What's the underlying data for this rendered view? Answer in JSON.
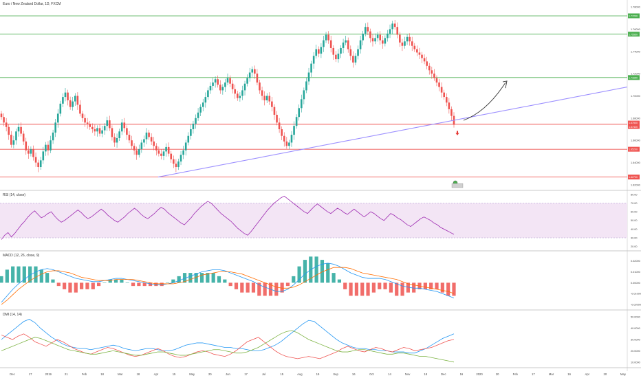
{
  "symbol_title": "Euro / New Zealand Dollar, 1D, FXCM",
  "panels": {
    "rsi_title": "RSI (14, close)",
    "macd_title": "MACD (12, 26, close, 9)",
    "dmi_title": "DMI (14, 14)"
  },
  "colors": {
    "up": "#26a69a",
    "down": "#ef5350",
    "resistance": "#4caf50",
    "support": "#ef5350",
    "trendline": "#9c8fff",
    "rsi": "#9c27b0",
    "rsi_band": "#f3e5f5",
    "macd_line": "#2196f3",
    "signal_line": "#ff6d00",
    "di_plus": "#2196f3",
    "di_minus": "#ef5350",
    "adx": "#7cb342"
  },
  "chart_data": [
    {
      "type": "candlestick",
      "title": "Euro / New Zealand Dollar, 1D, FXCM",
      "x_ticks": [
        "Dec",
        "17",
        "2019",
        "21",
        "Feb",
        "18",
        "Mar",
        "18",
        "Apr",
        "15",
        "May",
        "20",
        "Jun",
        "17",
        "Jul",
        "15",
        "Aug",
        "19",
        "Sep",
        "16",
        "Oct",
        "14",
        "Nov",
        "18",
        "Dec",
        "16",
        "2020",
        "20",
        "Feb",
        "17",
        "Mar",
        "16",
        "Apr",
        "20",
        "May"
      ],
      "y_ticks": [
        "1.78000",
        "1.76000",
        "1.74000",
        "1.72000",
        "1.70000",
        "1.68000",
        "1.66000",
        "1.64000",
        "1.62000"
      ],
      "ylim": [
        1.615,
        1.785
      ],
      "horizontal_levels": [
        {
          "value": 1.772,
          "role": "resistance",
          "tag": "1.77200"
        },
        {
          "value": 1.7555,
          "role": "resistance",
          "tag": "1.75550"
        },
        {
          "value": 1.7165,
          "role": "resistance",
          "tag": "1.71650"
        },
        {
          "value": 1.6745,
          "role": "support",
          "tag": "1.67450"
        },
        {
          "value": 1.652,
          "role": "support",
          "tag": "1.65200"
        },
        {
          "value": 1.627,
          "role": "support",
          "tag": "1.62700"
        }
      ],
      "price_tags": [
        "1.67500",
        "1.67420"
      ],
      "closes": [
        1.681,
        1.676,
        1.672,
        1.665,
        1.656,
        1.66,
        1.668,
        1.672,
        1.666,
        1.659,
        1.651,
        1.648,
        1.652,
        1.645,
        1.64,
        1.636,
        1.642,
        1.65,
        1.656,
        1.651,
        1.66,
        1.667,
        1.676,
        1.684,
        1.693,
        1.699,
        1.703,
        1.696,
        1.69,
        1.695,
        1.7,
        1.692,
        1.684,
        1.68,
        1.676,
        1.675,
        1.672,
        1.67,
        1.668,
        1.671,
        1.666,
        1.669,
        1.673,
        1.678,
        1.671,
        1.663,
        1.658,
        1.662,
        1.668,
        1.676,
        1.671,
        1.665,
        1.66,
        1.655,
        1.651,
        1.647,
        1.652,
        1.658,
        1.661,
        1.667,
        1.663,
        1.659,
        1.655,
        1.651,
        1.648,
        1.646,
        1.65,
        1.654,
        1.648,
        1.643,
        1.639,
        1.636,
        1.641,
        1.647,
        1.651,
        1.658,
        1.664,
        1.67,
        1.675,
        1.68,
        1.685,
        1.69,
        1.694,
        1.699,
        1.705,
        1.709,
        1.712,
        1.715,
        1.71,
        1.705,
        1.708,
        1.712,
        1.716,
        1.711,
        1.706,
        1.702,
        1.698,
        1.7,
        1.705,
        1.711,
        1.716,
        1.721,
        1.724,
        1.72,
        1.712,
        1.705,
        1.7,
        1.696,
        1.7,
        1.695,
        1.69,
        1.683,
        1.676,
        1.67,
        1.664,
        1.659,
        1.655,
        1.658,
        1.665,
        1.673,
        1.681,
        1.689,
        1.697,
        1.705,
        1.713,
        1.721,
        1.729,
        1.736,
        1.742,
        1.738,
        1.744,
        1.75,
        1.755,
        1.75,
        1.743,
        1.737,
        1.733,
        1.738,
        1.743,
        1.748,
        1.75,
        1.742,
        1.736,
        1.73,
        1.736,
        1.742,
        1.75,
        1.756,
        1.762,
        1.758,
        1.752,
        1.749,
        1.752,
        1.755,
        1.75,
        1.747,
        1.752,
        1.756,
        1.76,
        1.765,
        1.762,
        1.755,
        1.748,
        1.745,
        1.749,
        1.753,
        1.749,
        1.745,
        1.742,
        1.739,
        1.737,
        1.734,
        1.731,
        1.727,
        1.723,
        1.72,
        1.716,
        1.712,
        1.708,
        1.703,
        1.699,
        1.694,
        1.688,
        1.682,
        1.674
      ]
    },
    {
      "type": "line",
      "title": "RSI (14, close)",
      "y_ticks": [
        "80.00",
        "70.00",
        "60.00",
        "50.00",
        "40.00",
        "30.00",
        "20.00"
      ],
      "ylim": [
        15,
        83
      ],
      "band": [
        30,
        70
      ],
      "series": [
        {
          "name": "RSI",
          "values": [
            28,
            33,
            36,
            31,
            35,
            40,
            45,
            49,
            54,
            58,
            61,
            57,
            53,
            55,
            58,
            60,
            55,
            51,
            48,
            50,
            53,
            56,
            59,
            62,
            59,
            55,
            52,
            54,
            57,
            60,
            63,
            60,
            56,
            53,
            50,
            48,
            51,
            54,
            58,
            61,
            64,
            61,
            57,
            54,
            52,
            55,
            58,
            62,
            65,
            63,
            59,
            56,
            53,
            50,
            47,
            45,
            49,
            53,
            58,
            62,
            66,
            69,
            72,
            70,
            66,
            62,
            58,
            55,
            52,
            49,
            45,
            41,
            38,
            35,
            33,
            37,
            42,
            47,
            52,
            57,
            62,
            66,
            70,
            73,
            76,
            78,
            75,
            72,
            69,
            66,
            63,
            60,
            58,
            62,
            66,
            69,
            66,
            63,
            60,
            58,
            61,
            64,
            62,
            59,
            57,
            60,
            63,
            60,
            57,
            54,
            57,
            60,
            58,
            55,
            52,
            50,
            54,
            58,
            56,
            53,
            51,
            48,
            45,
            43,
            46,
            49,
            52,
            54,
            52,
            50,
            47,
            45,
            42,
            40,
            38,
            36,
            34
          ]
        }
      ]
    },
    {
      "type": "bar+line",
      "title": "MACD (12, 26, close, 9)",
      "y_ticks": [
        "0.02000",
        "0.01000",
        "0.00000",
        "-0.01000",
        "-0.02000"
      ],
      "ylim": [
        -0.025,
        0.028
      ],
      "series": [
        {
          "name": "MACD",
          "values": [
            -0.018,
            -0.012,
            -0.006,
            -0.001,
            0.003,
            0.007,
            0.01,
            0.012,
            0.013,
            0.012,
            0.01,
            0.008,
            0.006,
            0.004,
            0.003,
            0.002,
            0.001,
            0.001,
            0.002,
            0.003,
            0.004,
            0.004,
            0.003,
            0.002,
            0.001,
            0.0,
            -0.001,
            -0.002,
            -0.002,
            -0.001,
            0.0,
            0.002,
            0.004,
            0.006,
            0.008,
            0.01,
            0.011,
            0.012,
            0.012,
            0.011,
            0.009,
            0.007,
            0.005,
            0.003,
            0.001,
            -0.002,
            -0.004,
            -0.006,
            -0.008,
            -0.008,
            -0.006,
            -0.002,
            0.003,
            0.008,
            0.012,
            0.015,
            0.017,
            0.018,
            0.017,
            0.015,
            0.012,
            0.009,
            0.007,
            0.005,
            0.004,
            0.004,
            0.004,
            0.003,
            0.001,
            -0.001,
            -0.003,
            -0.004,
            -0.005,
            -0.005,
            -0.006,
            -0.007,
            -0.008,
            -0.01,
            -0.012,
            -0.014
          ]
        },
        {
          "name": "Signal",
          "values": [
            -0.02,
            -0.016,
            -0.011,
            -0.006,
            -0.002,
            0.002,
            0.005,
            0.008,
            0.01,
            0.011,
            0.011,
            0.01,
            0.009,
            0.007,
            0.005,
            0.004,
            0.003,
            0.002,
            0.002,
            0.002,
            0.003,
            0.003,
            0.003,
            0.003,
            0.002,
            0.001,
            0.0,
            -0.001,
            -0.001,
            -0.001,
            -0.001,
            0.0,
            0.001,
            0.003,
            0.005,
            0.007,
            0.008,
            0.009,
            0.01,
            0.01,
            0.01,
            0.009,
            0.008,
            0.006,
            0.004,
            0.002,
            0.0,
            -0.002,
            -0.004,
            -0.005,
            -0.005,
            -0.004,
            -0.002,
            0.001,
            0.004,
            0.007,
            0.01,
            0.012,
            0.014,
            0.014,
            0.014,
            0.013,
            0.011,
            0.009,
            0.008,
            0.007,
            0.006,
            0.005,
            0.004,
            0.003,
            0.001,
            -0.001,
            -0.002,
            -0.003,
            -0.004,
            -0.005,
            -0.006,
            -0.007,
            -0.008,
            -0.01
          ]
        }
      ]
    },
    {
      "type": "line",
      "title": "DMI (14, 14)",
      "y_ticks": [
        "50.0000",
        "40.0000",
        "30.0000",
        "20.0000",
        "10.0000"
      ],
      "ylim": [
        5,
        55
      ],
      "series": [
        {
          "name": "+DI",
          "values": [
            30,
            34,
            38,
            42,
            46,
            48,
            45,
            40,
            36,
            32,
            29,
            26,
            24,
            23,
            22,
            22,
            21,
            22,
            23,
            24,
            25,
            24,
            22,
            21,
            20,
            21,
            22,
            22,
            21,
            20,
            20,
            21,
            23,
            25,
            26,
            27,
            27,
            26,
            25,
            24,
            23,
            23,
            22,
            22,
            21,
            20,
            20,
            21,
            23,
            25,
            28,
            32,
            36,
            40,
            44,
            47,
            46,
            42,
            38,
            34,
            30,
            27,
            25,
            23,
            22,
            22,
            21,
            21,
            20,
            20,
            19,
            19,
            19,
            18,
            18,
            20,
            22,
            25,
            28,
            31,
            33,
            35
          ]
        },
        {
          "name": "-DI",
          "values": [
            34,
            32,
            30,
            33,
            35,
            32,
            28,
            26,
            24,
            27,
            30,
            28,
            25,
            22,
            20,
            18,
            17,
            19,
            21,
            23,
            22,
            20,
            18,
            16,
            15,
            16,
            18,
            20,
            22,
            20,
            17,
            15,
            14,
            15,
            17,
            19,
            20,
            19,
            17,
            16,
            15,
            17,
            20,
            24,
            28,
            30,
            32,
            28,
            24,
            20,
            17,
            15,
            14,
            13,
            14,
            15,
            14,
            13,
            15,
            17,
            19,
            22,
            24,
            22,
            20,
            19,
            21,
            23,
            22,
            20,
            19,
            21,
            23,
            22,
            20,
            21,
            22,
            23,
            25,
            27,
            29,
            30
          ]
        },
        {
          "name": "ADX",
          "values": [
            20,
            22,
            24,
            26,
            28,
            30,
            32,
            31,
            29,
            27,
            25,
            23,
            21,
            20,
            19,
            18,
            17,
            17,
            18,
            19,
            20,
            19,
            18,
            17,
            16,
            16,
            17,
            18,
            19,
            19,
            18,
            17,
            16,
            16,
            17,
            18,
            19,
            20,
            21,
            21,
            20,
            19,
            18,
            18,
            19,
            21,
            23,
            26,
            29,
            32,
            35,
            37,
            38,
            36,
            33,
            30,
            28,
            26,
            24,
            22,
            20,
            19,
            19,
            20,
            21,
            21,
            20,
            19,
            18,
            17,
            17,
            18,
            18,
            17,
            16,
            15,
            15,
            14,
            13,
            12,
            11,
            10
          ]
        }
      ]
    }
  ]
}
